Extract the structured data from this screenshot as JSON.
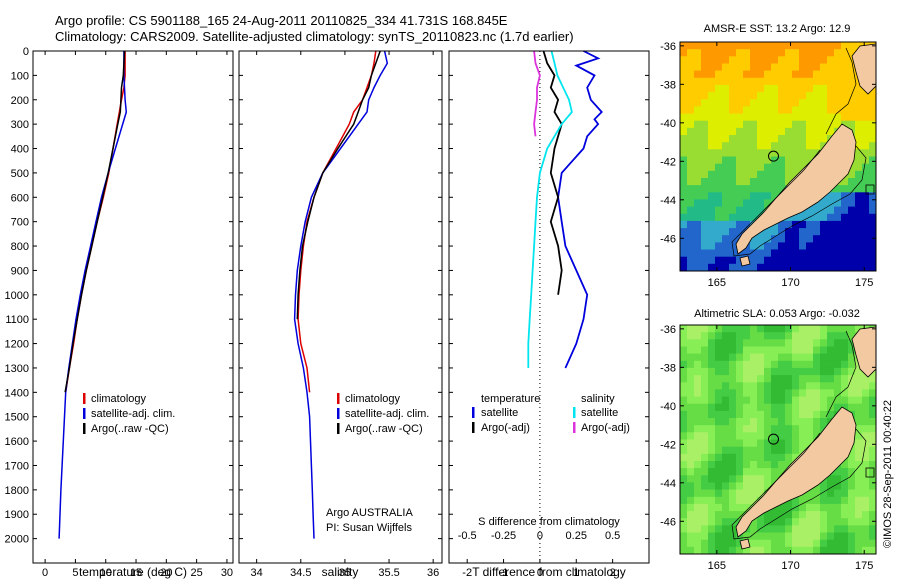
{
  "header": {
    "title_line1": "Argo profile: CS 5901188_165 24-Aug-2011 20110825_334 41.731S 168.845E",
    "title_line2": "Climatology: CARS2009. Satellite-adjusted climatology: synTS_20110823.nc (1.7d earlier)"
  },
  "colors": {
    "climatology": "#dd0000",
    "satellite": "#0000dd",
    "argo": "#000000",
    "sal_satellite": "#00e5ee",
    "sal_argo": "#dd33dd",
    "land": "#f2c9a0"
  },
  "chart_data": [
    {
      "type": "line",
      "id": "temperature-profile",
      "xlabel": "temperature (deg C)",
      "ylabel": "",
      "xlim": [
        -2,
        31
      ],
      "ylim": [
        0,
        2100
      ],
      "xticks": [
        0,
        5,
        10,
        15,
        20,
        25,
        30
      ],
      "yticks": [
        0,
        100,
        200,
        300,
        400,
        500,
        600,
        700,
        800,
        900,
        1000,
        1100,
        1200,
        1300,
        1400,
        1500,
        1600,
        1700,
        1800,
        1900,
        2000
      ],
      "legend": [
        "climatology",
        "satellite-adj. clim.",
        "Argo(..raw -QC)"
      ],
      "legend_position": "bottom-right",
      "series": [
        {
          "name": "climatology",
          "color": "#dd0000",
          "depth": [
            0,
            100,
            150,
            200,
            300,
            400,
            500,
            600,
            700,
            800,
            900,
            1000,
            1100,
            1200,
            1300,
            1400
          ],
          "values": [
            13.2,
            13.2,
            13.0,
            12.6,
            11.9,
            11.2,
            10.5,
            9.6,
            8.6,
            7.7,
            6.8,
            6.0,
            5.3,
            4.7,
            4.0,
            3.4
          ]
        },
        {
          "name": "satellite-adj. clim.",
          "color": "#0000dd",
          "depth": [
            0,
            100,
            200,
            250,
            300,
            400,
            500,
            600,
            700,
            800,
            900,
            1000,
            1100,
            1200,
            1300,
            1400,
            1500,
            1600,
            1700,
            1800,
            1900,
            2000
          ],
          "values": [
            13.0,
            13.0,
            13.2,
            13.4,
            12.8,
            11.6,
            10.4,
            9.3,
            8.4,
            7.5,
            6.6,
            5.8,
            5.1,
            4.5,
            3.9,
            3.4,
            3.2,
            3.0,
            2.8,
            2.6,
            2.45,
            2.3
          ]
        },
        {
          "name": "Argo(..raw -QC)",
          "color": "#000000",
          "depth": [
            0,
            50,
            100,
            150,
            200,
            250,
            300,
            400,
            500,
            600,
            700,
            800,
            900,
            1000,
            1100,
            1200,
            1300,
            1400
          ],
          "values": [
            13.1,
            13.0,
            12.9,
            12.6,
            12.5,
            12.4,
            12.0,
            11.2,
            10.4,
            9.5,
            8.6,
            7.7,
            6.8,
            6.0,
            5.3,
            4.6,
            4.0,
            3.3
          ]
        }
      ]
    },
    {
      "type": "line",
      "id": "salinity-profile",
      "xlabel": "salinity",
      "ylabel": "",
      "xlim": [
        33.8,
        36.1
      ],
      "ylim": [
        0,
        2100
      ],
      "xticks": [
        34,
        34.5,
        35,
        35.5,
        36
      ],
      "legend": [
        "climatology",
        "satellite-adj. clim.",
        "Argo(..raw -QC)"
      ],
      "legend_position": "bottom-right",
      "annotation_line1": "Argo AUSTRALIA",
      "annotation_line2": "PI: Susan Wijffels",
      "series": [
        {
          "name": "climatology",
          "color": "#dd0000",
          "depth": [
            0,
            50,
            100,
            150,
            200,
            250,
            300,
            400,
            500,
            600,
            700,
            800,
            900,
            1000,
            1100,
            1200,
            1300,
            1400
          ],
          "values": [
            35.35,
            35.33,
            35.3,
            35.25,
            35.2,
            35.1,
            35.05,
            34.9,
            34.75,
            34.65,
            34.57,
            34.53,
            34.5,
            34.48,
            34.47,
            34.5,
            34.57,
            34.6
          ]
        },
        {
          "name": "satellite-adj. clim.",
          "color": "#0000dd",
          "depth": [
            0,
            50,
            100,
            150,
            200,
            250,
            300,
            400,
            500,
            600,
            700,
            800,
            900,
            1000,
            1100,
            1200,
            1300,
            1400,
            1500,
            1600,
            1700,
            1800,
            1900,
            2000
          ],
          "values": [
            35.45,
            35.48,
            35.4,
            35.33,
            35.27,
            35.25,
            35.15,
            34.95,
            34.75,
            34.62,
            34.55,
            34.5,
            34.46,
            34.44,
            34.43,
            34.47,
            34.53,
            34.57,
            34.6,
            34.61,
            34.62,
            34.63,
            34.64,
            34.65
          ]
        },
        {
          "name": "Argo(..raw -QC)",
          "color": "#000000",
          "depth": [
            0,
            50,
            100,
            150,
            200,
            250,
            300,
            400,
            500,
            600,
            700,
            800,
            900,
            1000,
            1100
          ],
          "values": [
            35.4,
            35.35,
            35.3,
            35.27,
            35.2,
            35.15,
            35.1,
            34.92,
            34.75,
            34.65,
            34.58,
            34.52,
            34.49,
            34.47,
            34.46
          ]
        }
      ]
    },
    {
      "type": "line",
      "id": "difference-profile",
      "xlabel": "T difference from climatology",
      "xlabel_top": "S difference from climatology",
      "xlim": [
        -2.5,
        3
      ],
      "xticks": [
        -2,
        -1,
        0,
        1,
        2
      ],
      "xticks_top": [
        "-0.5",
        "-0.25",
        "0",
        "0.25",
        "0.5"
      ],
      "legend_temperature_heading": "temperature",
      "legend_salinity_heading": "salinity",
      "legend": [
        "satellite",
        "Argo(-adj)",
        "satellite",
        "Argo(-adj)"
      ],
      "legend_position": "bottom",
      "series": [
        {
          "name": "satellite",
          "group": "temperature",
          "color": "#0000dd",
          "depth": [
            0,
            30,
            60,
            100,
            150,
            200,
            250,
            280,
            300,
            350,
            400,
            450,
            500,
            600,
            700,
            800,
            900,
            1000,
            1100,
            1200,
            1300
          ],
          "values": [
            1.2,
            1.6,
            1.0,
            1.5,
            1.3,
            1.4,
            1.7,
            1.5,
            1.6,
            1.3,
            1.2,
            0.9,
            0.6,
            0.5,
            0.6,
            0.7,
            1.0,
            1.3,
            1.2,
            1.0,
            0.7
          ]
        },
        {
          "name": "Argo(-adj)",
          "group": "temperature",
          "color": "#000000",
          "depth": [
            0,
            50,
            100,
            150,
            200,
            250,
            300,
            400,
            500,
            600,
            700,
            800,
            900,
            1000
          ],
          "values": [
            0.1,
            0.2,
            0.4,
            0.3,
            0.5,
            0.4,
            0.6,
            0.4,
            0.3,
            0.5,
            0.3,
            0.5,
            0.6,
            0.5
          ]
        },
        {
          "name": "satellite",
          "group": "salinity",
          "color": "#00e5ee",
          "depth": [
            0,
            50,
            100,
            150,
            200,
            250,
            300,
            350,
            400,
            500,
            600,
            700,
            800,
            900,
            1000,
            1100,
            1200,
            1300
          ],
          "values": [
            0.08,
            0.1,
            0.12,
            0.16,
            0.2,
            0.22,
            0.15,
            0.1,
            0.05,
            0.0,
            -0.02,
            -0.03,
            -0.04,
            -0.05,
            -0.06,
            -0.07,
            -0.08,
            -0.08
          ]
        },
        {
          "name": "Argo(-adj)",
          "group": "salinity",
          "color": "#dd33dd",
          "depth": [
            0,
            50,
            100,
            150,
            200,
            250,
            300,
            350
          ],
          "values": [
            -0.04,
            -0.03,
            0.0,
            -0.02,
            -0.02,
            -0.03,
            -0.04,
            -0.03
          ]
        }
      ]
    },
    {
      "type": "heatmap",
      "id": "sst-map",
      "title": "AMSR-E SST: 13.2 Argo: 12.9",
      "xlim": [
        162.5,
        175.8
      ],
      "ylim": [
        -47.7,
        -35.8
      ],
      "xticks": [
        165,
        170,
        175
      ],
      "yticks": [
        -36,
        -38,
        -40,
        -42,
        -44,
        -46
      ],
      "float_position": {
        "lon": 168.845,
        "lat": -41.731
      },
      "palette": [
        "#ff9900",
        "#ffcc00",
        "#ddee00",
        "#99dd33",
        "#44cc55",
        "#22bb88",
        "#33aacc",
        "#2266cc",
        "#0000aa"
      ]
    },
    {
      "type": "heatmap",
      "id": "sla-map",
      "title": "Altimetric SLA: 0.053 Argo: -0.032",
      "xlim": [
        162.5,
        175.8
      ],
      "ylim": [
        -47.7,
        -35.8
      ],
      "xticks": [
        165,
        170,
        175
      ],
      "yticks": [
        -36,
        -38,
        -40,
        -42,
        -44,
        -46
      ],
      "float_position": {
        "lon": 168.845,
        "lat": -41.731
      },
      "palette": [
        "#33bb33",
        "#44cc44",
        "#66dd44",
        "#88ee55",
        "#aaf066"
      ]
    }
  ],
  "footer": {
    "credit": "©IMOS 28-Sep-2011 00:40:22"
  }
}
